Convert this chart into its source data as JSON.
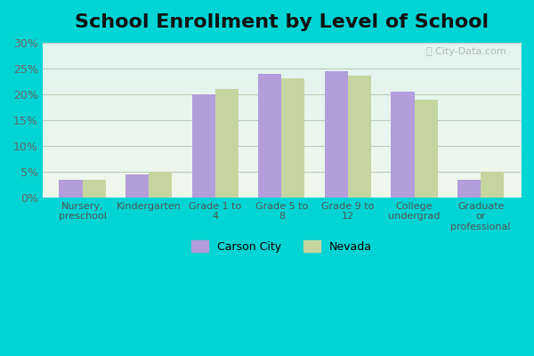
{
  "title": "School Enrollment by Level of School",
  "categories": [
    "Nursery,\npreschool",
    "Kindergarten",
    "Grade 1 to\n4",
    "Grade 5 to\n8",
    "Grade 9 to\n12",
    "College\nundergrad",
    "Graduate\nor\nprofessional"
  ],
  "carson_city": [
    3.5,
    4.5,
    20.0,
    24.0,
    24.5,
    20.5,
    3.5
  ],
  "nevada": [
    3.5,
    5.0,
    21.0,
    23.0,
    23.5,
    19.0,
    5.0
  ],
  "carson_city_color": "#b39ddb",
  "nevada_color": "#c5d5a0",
  "ylim_max": 30,
  "yticks": [
    0,
    5,
    10,
    15,
    20,
    25,
    30
  ],
  "ytick_labels": [
    "0%",
    "5%",
    "10%",
    "15%",
    "20%",
    "25%",
    "30%"
  ],
  "legend_labels": [
    "Carson City",
    "Nevada"
  ],
  "outer_bg": "#00d4d4",
  "bar_width": 0.35,
  "title_fontsize": 16,
  "watermark": "City-Data.com"
}
